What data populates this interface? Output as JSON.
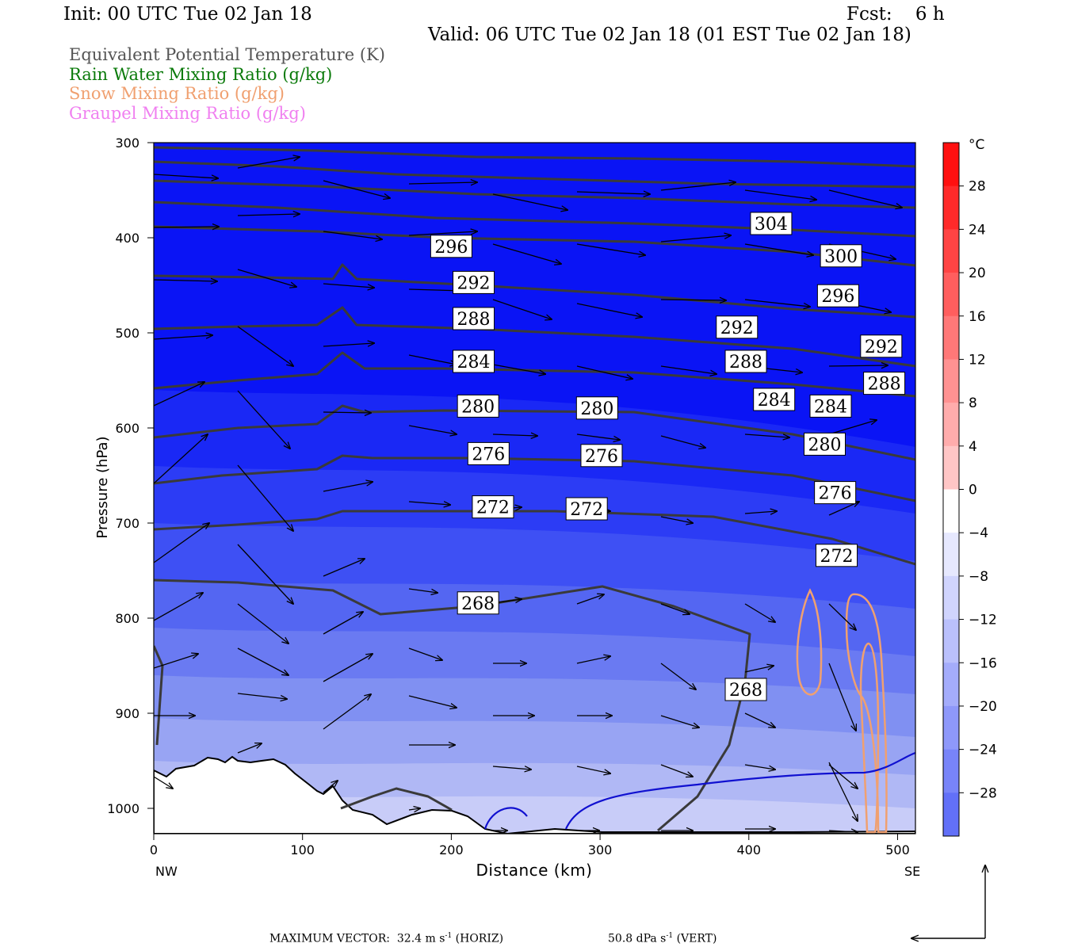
{
  "header": {
    "init": "Init: 00 UTC Tue 02 Jan 18",
    "fcst": "Fcst:    6 h",
    "valid": "Valid: 06 UTC Tue 02 Jan 18 (01 EST Tue 02 Jan 18)"
  },
  "legend": [
    {
      "label": "Equivalent Potential Temperature (K)",
      "color": "#555555"
    },
    {
      "label": "Rain Water Mixing Ratio (g/kg)",
      "color": "#0a7a0a"
    },
    {
      "label": "Snow Mixing Ratio (g/kg)",
      "color": "#f0a070"
    },
    {
      "label": "Graupel Mixing Ratio (g/kg)",
      "color": "#f080f0"
    }
  ],
  "footer": {
    "max_vector": "MAXIMUM VECTOR:  32.4 m s",
    "horiz_unit": "-1",
    "horiz": " (HORIZ)",
    "vert_value": "50.8 dPa s",
    "vert_unit": "-1",
    "vert": " (VERT)"
  },
  "chart_data": {
    "type": "cross-section contour",
    "xlabel": "Distance (km)",
    "ylabel": "Pressure (hPa)",
    "x_ticks": [
      0,
      100,
      200,
      300,
      400,
      500
    ],
    "y_ticks": [
      300,
      400,
      500,
      600,
      700,
      800,
      900,
      1000
    ],
    "xlim": [
      0,
      512
    ],
    "ylim": [
      1030,
      300
    ],
    "x_end_labels": {
      "left": "NW",
      "right": "SE"
    },
    "colorbar": {
      "unit": "°C",
      "ticks": [
        28,
        24,
        20,
        16,
        12,
        8,
        4,
        0,
        -4,
        -8,
        -12,
        -16,
        -20,
        -24,
        -28
      ],
      "range": [
        -32,
        32
      ]
    },
    "theta_e_labels": [
      {
        "value": "304",
        "x": 415,
        "p": 385
      },
      {
        "value": "296",
        "x": 200,
        "p": 409
      },
      {
        "value": "300",
        "x": 462,
        "p": 419
      },
      {
        "value": "292",
        "x": 215,
        "p": 447
      },
      {
        "value": "296",
        "x": 460,
        "p": 461
      },
      {
        "value": "288",
        "x": 215,
        "p": 485
      },
      {
        "value": "292",
        "x": 392,
        "p": 494
      },
      {
        "value": "292",
        "x": 489,
        "p": 514
      },
      {
        "value": "284",
        "x": 215,
        "p": 530
      },
      {
        "value": "288",
        "x": 398,
        "p": 530
      },
      {
        "value": "288",
        "x": 491,
        "p": 553
      },
      {
        "value": "284",
        "x": 417,
        "p": 570
      },
      {
        "value": "284",
        "x": 455,
        "p": 577
      },
      {
        "value": "280",
        "x": 218,
        "p": 577
      },
      {
        "value": "280",
        "x": 298,
        "p": 579
      },
      {
        "value": "280",
        "x": 451,
        "p": 617
      },
      {
        "value": "276",
        "x": 225,
        "p": 627
      },
      {
        "value": "276",
        "x": 301,
        "p": 629
      },
      {
        "value": "276",
        "x": 458,
        "p": 668
      },
      {
        "value": "272",
        "x": 228,
        "p": 683
      },
      {
        "value": "272",
        "x": 291,
        "p": 685
      },
      {
        "value": "272",
        "x": 459,
        "p": 734
      },
      {
        "value": "268",
        "x": 218,
        "p": 784
      },
      {
        "value": "268",
        "x": 398,
        "p": 875
      }
    ]
  }
}
